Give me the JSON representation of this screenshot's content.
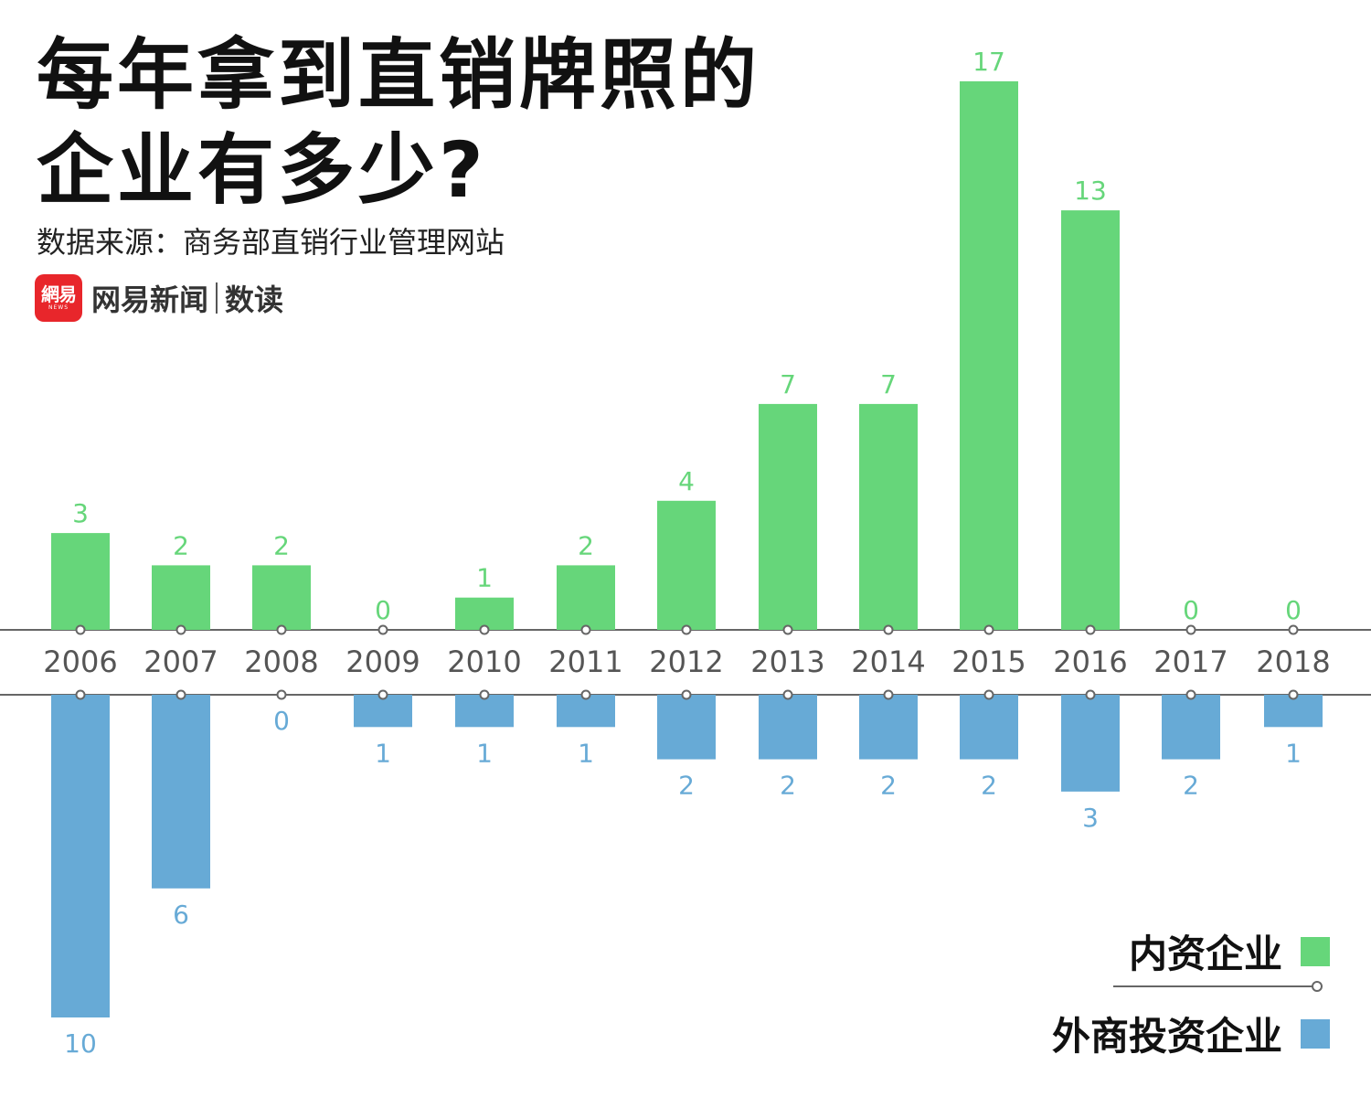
{
  "title_line1": "每年拿到直销牌照的",
  "title_line2": "企业有多少?",
  "source": "数据来源：商务部直销行业管理网站",
  "brand": {
    "logo_text": "網易",
    "logo_sub": "NEWS",
    "name": "网易新闻",
    "sub": "数读"
  },
  "chart_data": {
    "type": "bar",
    "categories": [
      "2006",
      "2007",
      "2008",
      "2009",
      "2010",
      "2011",
      "2012",
      "2013",
      "2014",
      "2015",
      "2016",
      "2017",
      "2018"
    ],
    "series": [
      {
        "name": "内资企业",
        "values": [
          3,
          2,
          2,
          0,
          1,
          2,
          4,
          7,
          7,
          17,
          13,
          0,
          0
        ],
        "color": "#66d67a",
        "direction": "up"
      },
      {
        "name": "外商投资企业",
        "values": [
          10,
          6,
          0,
          1,
          1,
          1,
          2,
          2,
          2,
          2,
          3,
          2,
          1
        ],
        "color": "#67aad6",
        "direction": "down"
      }
    ],
    "legend_position": "bottom-right",
    "grid": false,
    "axis_color": "#666666",
    "year_label_color": "#555555"
  }
}
